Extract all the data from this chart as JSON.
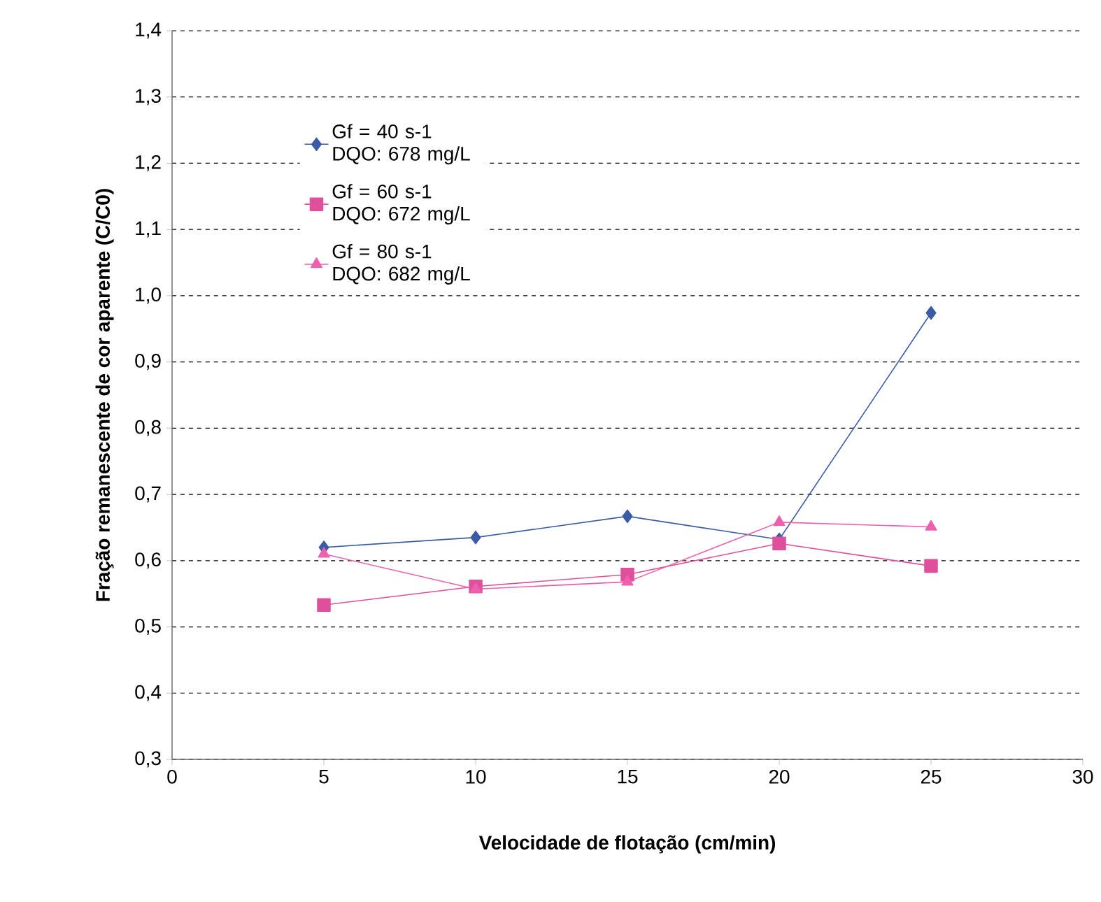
{
  "chart_data": {
    "type": "line",
    "xlabel": "Velocidade de flotação (cm/min)",
    "ylabel": "Fração remanescente de cor aparente (C/C0)",
    "x": [
      5,
      10,
      15,
      20,
      25
    ],
    "series": [
      {
        "name": "Gf = 40 s-1 DQO: 678 mg/L",
        "color": "#3b5ba5",
        "marker": "diamond",
        "values": [
          0.62,
          0.635,
          0.667,
          0.632,
          0.974
        ]
      },
      {
        "name": "Gf = 60 s-1 DQO: 672 mg/L",
        "color": "#e0509a",
        "marker": "square",
        "values": [
          0.533,
          0.561,
          0.579,
          0.626,
          0.592
        ]
      },
      {
        "name": "Gf = 80 s-1 DQO: 682 mg/L",
        "color": "#ee5fae",
        "marker": "triangle",
        "values": [
          0.61,
          0.557,
          0.568,
          0.658,
          0.651
        ]
      }
    ],
    "xlim": [
      0,
      30
    ],
    "xticks": [
      0,
      5,
      10,
      15,
      20,
      25,
      30
    ],
    "ylim": [
      0.3,
      1.4
    ],
    "yticks": [
      {
        "value": 0.3,
        "label": "0,3"
      },
      {
        "value": 0.4,
        "label": "0,4"
      },
      {
        "value": 0.5,
        "label": "0,5"
      },
      {
        "value": 0.6,
        "label": "0,6"
      },
      {
        "value": 0.7,
        "label": "0,7"
      },
      {
        "value": 0.8,
        "label": "0,8"
      },
      {
        "value": 0.9,
        "label": "0,9"
      },
      {
        "value": 1.0,
        "label": "1,0"
      },
      {
        "value": 1.1,
        "label": "1,1"
      },
      {
        "value": 1.2,
        "label": "1,2"
      },
      {
        "value": 1.3,
        "label": "1,3"
      },
      {
        "value": 1.4,
        "label": "1,4"
      }
    ],
    "grid": "y",
    "legend": "top left",
    "line_style": "solid"
  }
}
